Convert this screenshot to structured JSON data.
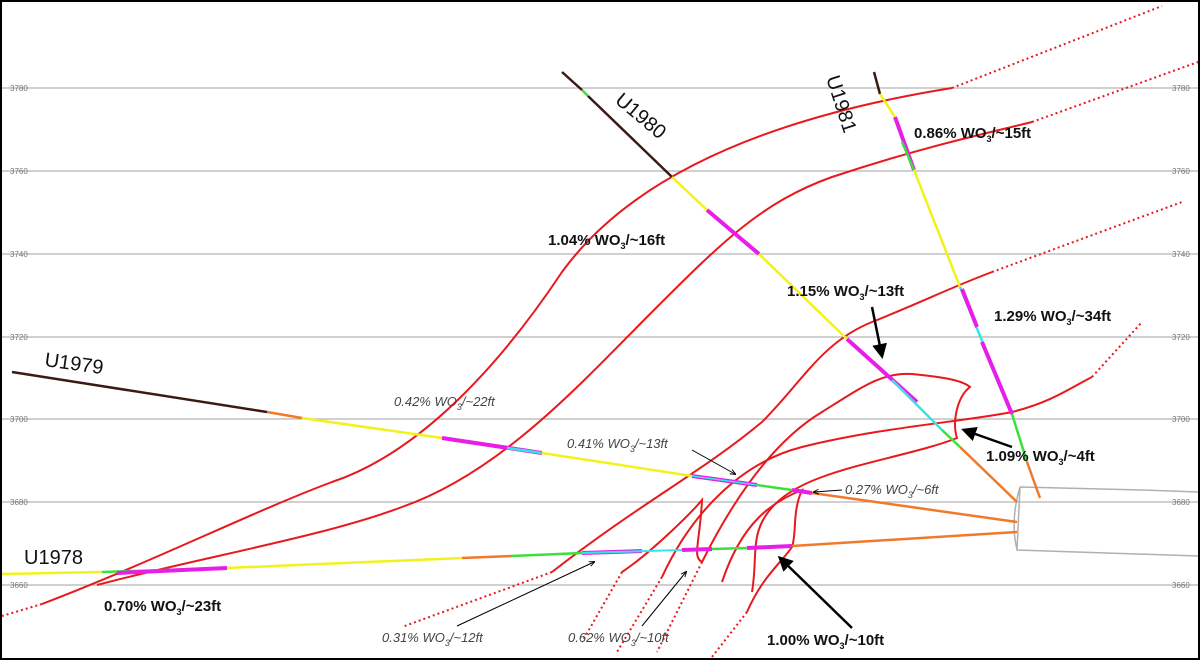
{
  "elevation_ticks": [
    "3780",
    "3760",
    "3740",
    "3720",
    "3700",
    "3680",
    "3660"
  ],
  "drillholes": {
    "u1978": "U1978",
    "u1979": "U1979",
    "u1980": "U1980",
    "u1981": "U1981"
  },
  "intercepts": [
    {
      "id": "i1",
      "pct": "0.86% WO",
      "unit": "/~15ft"
    },
    {
      "id": "i2",
      "pct": "1.04% WO",
      "unit": "/~16ft"
    },
    {
      "id": "i3",
      "pct": "1.15% WO",
      "unit": "/~13ft"
    },
    {
      "id": "i4",
      "pct": "1.29% WO",
      "unit": "/~34ft"
    },
    {
      "id": "i5",
      "pct": "1.09% WO",
      "unit": "/~4ft"
    },
    {
      "id": "i6",
      "pct": "0.42% WO",
      "unit": "/~22ft"
    },
    {
      "id": "i7",
      "pct": "0.41% WO",
      "unit": "/~13ft"
    },
    {
      "id": "i8",
      "pct": "0.27% WO",
      "unit": "/~6ft"
    },
    {
      "id": "i9",
      "pct": "0.70% WO",
      "unit": "/~23ft"
    },
    {
      "id": "i10",
      "pct": "0.31% WO",
      "unit": "/~12ft"
    },
    {
      "id": "i11",
      "pct": "0.62% WO",
      "unit": "/~10ft"
    },
    {
      "id": "i12",
      "pct": "1.00% WO",
      "unit": "/~10ft"
    }
  ],
  "subscript": "3",
  "colors": {
    "vein": "#e8191c",
    "grid": "#b3b3b3",
    "hole_collar": "#3b1a14",
    "low_grade": "#f2f21b",
    "mid_grade": "#3be03b",
    "cyan_grade": "#33e6e6",
    "high_grade": "#e81ee8",
    "orange_trace": "#f07a2a",
    "drift": "#b0b0b0"
  }
}
